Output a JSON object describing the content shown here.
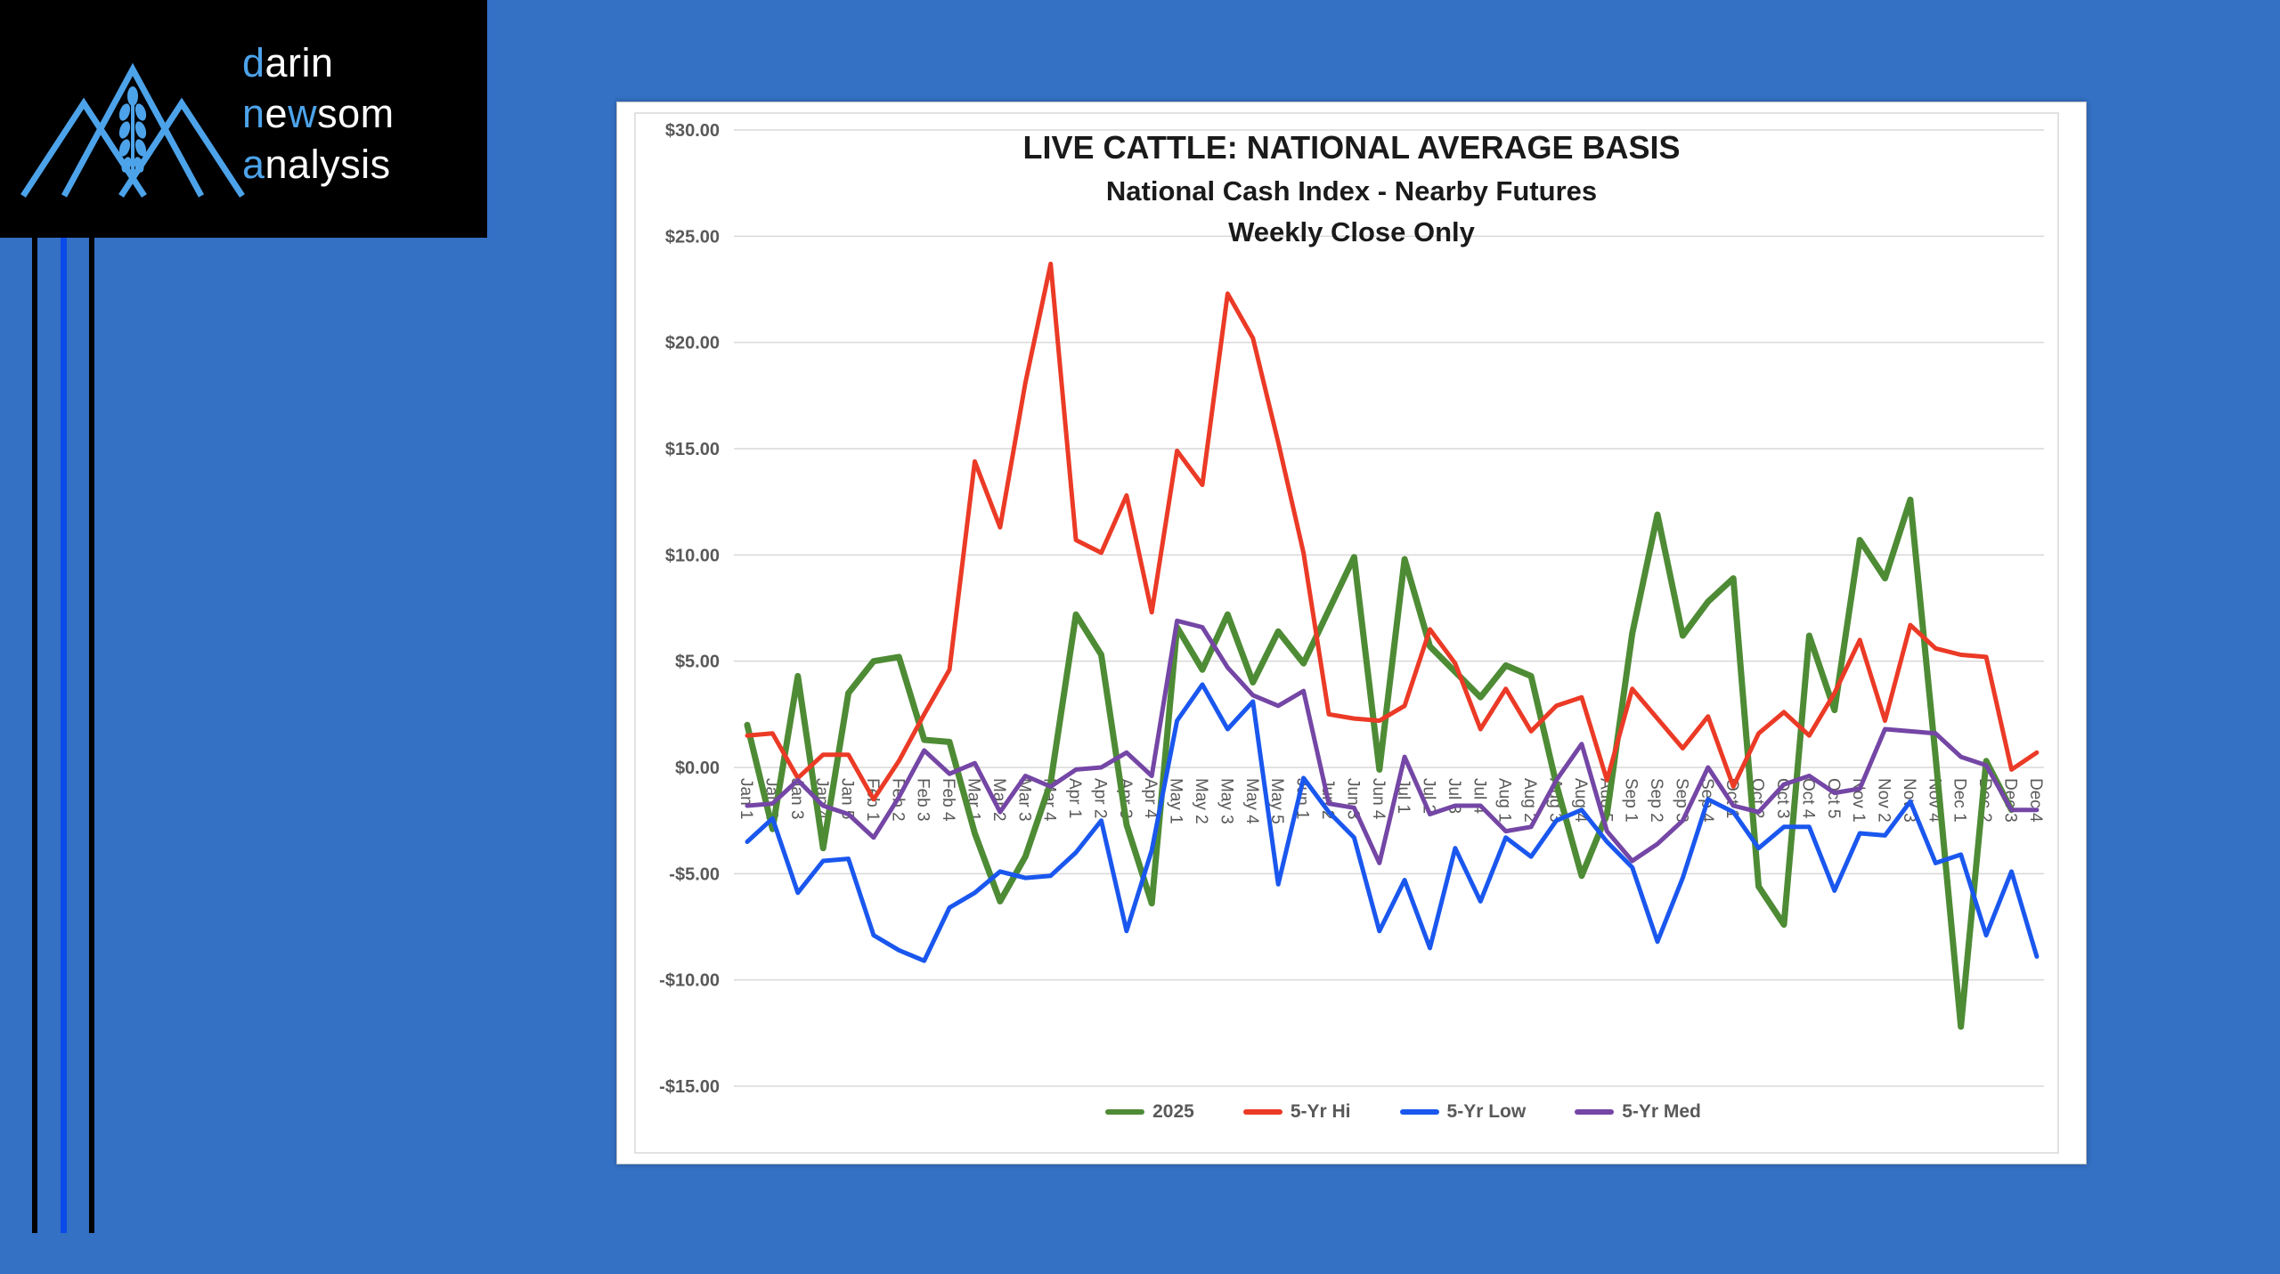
{
  "colors": {
    "page_bg": "#3470c4",
    "logo_bg": "#000000",
    "logo_accent": "#4da3ea",
    "logo_text": "#ffffff",
    "stripe_blue": "#0a4ae8",
    "stripe_black": "#000000",
    "axis_text": "#595959",
    "gridline": "#d9d9d9",
    "panel_bg": "#ffffff",
    "panel_border": "#b8bcc2",
    "title_text": "#1a1a1a"
  },
  "logo": {
    "line1": {
      "blue": "d",
      "rest": "arin"
    },
    "line2": {
      "blue1": "n",
      "white1": "e",
      "blue2": "w",
      "rest": "som"
    },
    "line3": {
      "blue": "a",
      "rest": "nalysis"
    }
  },
  "chart_data": {
    "type": "line",
    "title": "LIVE CATTLE: NATIONAL AVERAGE BASIS",
    "title_line1": "LIVE CATTLE: NATIONAL AVERAGE BASIS",
    "title_line2": "National Cash Index - Nearby Futures",
    "title_line3": "Weekly Close Only",
    "grid": "horizontal",
    "legend_position": "bottom",
    "ylim": [
      -15,
      30
    ],
    "y_ticks": [
      {
        "value": 30,
        "label": "$30.00"
      },
      {
        "value": 25,
        "label": "$25.00"
      },
      {
        "value": 20,
        "label": "$20.00"
      },
      {
        "value": 15,
        "label": "$15.00"
      },
      {
        "value": 10,
        "label": "$10.00"
      },
      {
        "value": 5,
        "label": "$5.00"
      },
      {
        "value": 0,
        "label": "$0.00"
      },
      {
        "value": -5,
        "label": "-$5.00"
      },
      {
        "value": -10,
        "label": "-$10.00"
      },
      {
        "value": -15,
        "label": "-$15.00"
      }
    ],
    "categories": [
      "Jan 1",
      "Jan 2",
      "Jan 3",
      "Jan 4",
      "Jan 5",
      "Feb 1",
      "Feb 2",
      "Feb 3",
      "Feb 4",
      "Mar 1",
      "Mar 2",
      "Mar 3",
      "Mar 4",
      "Apr 1",
      "Apr 2",
      "Apr 3",
      "Apr 4",
      "May 1",
      "May 2",
      "May 3",
      "May 4",
      "May 5",
      "Jun 1",
      "Jun 2",
      "Jun 3",
      "Jun 4",
      "Jul 1",
      "Jul 2",
      "Jul 3",
      "Jul 4",
      "Aug 1",
      "Aug 2",
      "Aug 3",
      "Aug 4",
      "Aug 5",
      "Sep 1",
      "Sep 2",
      "Sep 3",
      "Sep 4",
      "Oct 1",
      "Oct 2",
      "Oct 3",
      "Oct 4",
      "Oct 5",
      "Nov 1",
      "Nov 2",
      "Nov 3",
      "Nov 4",
      "Dec 1",
      "Dec 2",
      "Dec 3",
      "Dec 4"
    ],
    "series": [
      {
        "name": "2025",
        "color": "#4e8b35",
        "line_width": 7,
        "values": [
          2.0,
          -2.9,
          4.3,
          -3.8,
          3.5,
          5.0,
          5.2,
          1.3,
          1.2,
          -3.1,
          -6.3,
          -4.2,
          -0.7,
          7.2,
          5.3,
          -2.7,
          -6.4,
          6.6,
          4.6,
          7.2,
          4.0,
          6.4,
          4.9,
          7.4,
          9.9,
          -0.1,
          9.8,
          5.7,
          4.5,
          3.3,
          4.8,
          4.3,
          -0.8,
          -5.1,
          -2.2,
          6.3,
          11.9,
          6.2,
          7.8,
          8.9,
          -5.6,
          -7.4,
          6.2,
          2.7,
          10.7,
          8.9,
          12.6,
          0.5,
          -12.2,
          0.3,
          -2.0,
          null
        ]
      },
      {
        "name": "5-Yr Hi",
        "color": "#eb3a26",
        "line_width": 5,
        "values": [
          1.5,
          1.6,
          -0.5,
          0.6,
          0.6,
          -1.5,
          0.3,
          2.5,
          4.6,
          14.4,
          11.3,
          18.1,
          23.7,
          10.7,
          10.1,
          12.8,
          7.3,
          14.9,
          13.3,
          22.3,
          20.2,
          15.3,
          10.1,
          2.5,
          2.3,
          2.2,
          2.9,
          6.5,
          4.9,
          1.8,
          3.7,
          1.7,
          2.9,
          3.3,
          -0.6,
          3.7,
          2.3,
          0.9,
          2.4,
          -0.9,
          1.6,
          2.6,
          1.5,
          3.5,
          6.0,
          2.2,
          6.7,
          5.6,
          5.3,
          5.2,
          -0.1,
          0.7
        ]
      },
      {
        "name": "5-Yr Low",
        "color": "#1a57ee",
        "line_width": 5,
        "values": [
          -3.5,
          -2.4,
          -5.9,
          -4.4,
          -4.3,
          -7.9,
          -8.6,
          -9.1,
          -6.6,
          -5.9,
          -4.9,
          -5.2,
          -5.1,
          -4.0,
          -2.5,
          -7.7,
          -3.9,
          2.2,
          3.9,
          1.8,
          3.1,
          -5.5,
          -0.5,
          -2.1,
          -3.3,
          -7.7,
          -5.3,
          -8.5,
          -3.8,
          -6.3,
          -3.3,
          -4.2,
          -2.5,
          -2.0,
          -3.5,
          -4.7,
          -8.2,
          -5.2,
          -1.5,
          -2.1,
          -3.8,
          -2.8,
          -2.8,
          -5.8,
          -3.1,
          -3.2,
          -1.6,
          -4.5,
          -4.1,
          -7.9,
          -4.9,
          -8.9
        ]
      },
      {
        "name": "5-Yr Med",
        "color": "#7446a5",
        "line_width": 5,
        "values": [
          -1.8,
          -1.7,
          -0.6,
          -1.8,
          -2.2,
          -3.3,
          -1.4,
          0.8,
          -0.3,
          0.2,
          -2.1,
          -0.4,
          -0.9,
          -0.1,
          0.0,
          0.7,
          -0.4,
          6.9,
          6.6,
          4.7,
          3.4,
          2.9,
          3.6,
          -1.7,
          -1.9,
          -4.5,
          0.5,
          -2.2,
          -1.8,
          -1.8,
          -3.0,
          -2.8,
          -0.6,
          1.1,
          -3.0,
          -4.4,
          -3.6,
          -2.5,
          0.0,
          -1.8,
          -2.1,
          -0.8,
          -0.4,
          -1.2,
          -1.0,
          1.8,
          1.7,
          1.6,
          0.5,
          0.1,
          -2.0,
          -2.0
        ]
      }
    ]
  }
}
